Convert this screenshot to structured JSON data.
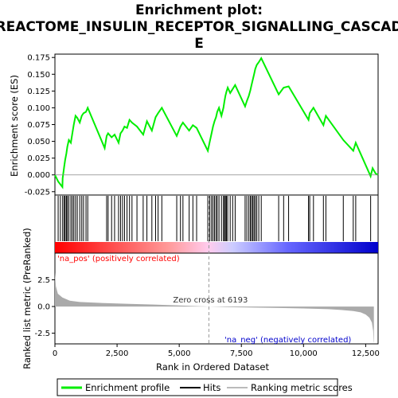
{
  "chart_data": {
    "type": "line",
    "title_lines": [
      "Enrichment plot:",
      "REACTOME_INSULIN_RECEPTOR_SIGNALLING_CASCAD",
      "E"
    ],
    "xlabel": "Rank in Ordered Dataset",
    "ylabel_top": "Enrichment score (ES)",
    "ylabel_bottom": "Ranked list metric (PreRanked)",
    "xlim": [
      0,
      13000
    ],
    "x_ticks": [
      0,
      2500,
      5000,
      7500,
      10000,
      12500
    ],
    "x_tick_labels": [
      "0",
      "2,500",
      "5,000",
      "7,500",
      "10,000",
      "12,500"
    ],
    "es_ylim": [
      -0.03,
      0.18
    ],
    "es_ticks": [
      -0.025,
      0.0,
      0.025,
      0.05,
      0.075,
      0.1,
      0.125,
      0.15,
      0.175
    ],
    "es_tick_labels": [
      "-0.025",
      "0.000",
      "0.025",
      "0.050",
      "0.075",
      "0.100",
      "0.125",
      "0.150",
      "0.175"
    ],
    "metric_ylim": [
      -3.5,
      5.0
    ],
    "metric_ticks": [
      -2.5,
      0.0,
      2.5
    ],
    "metric_tick_labels": [
      "-2.5",
      "0.0",
      "2.5"
    ],
    "zero_cross": 6193,
    "zero_cross_label": "Zero cross at 6193",
    "pos_label": "'na_pos' (positively correlated)",
    "neg_label": "'na_neg' (negatively correlated)",
    "hits": [
      130,
      220,
      310,
      370,
      410,
      460,
      500,
      560,
      640,
      700,
      760,
      830,
      900,
      1000,
      1080,
      1150,
      1250,
      1320,
      2080,
      2140,
      2280,
      2400,
      2560,
      2640,
      2720,
      2800,
      2900,
      3000,
      3100,
      3300,
      3550,
      3700,
      3900,
      4050,
      4150,
      4300,
      4900,
      5050,
      5150,
      5400,
      5550,
      5700,
      6150,
      6230,
      6300,
      6360,
      6420,
      6480,
      6530,
      6600,
      6700,
      6780,
      6820,
      6860,
      6900,
      6950,
      7050,
      7150,
      7250,
      7650,
      7720,
      7800,
      7860,
      7910,
      7960,
      8010,
      8060,
      8120,
      8200,
      8300,
      9000,
      9200,
      9400,
      10200,
      10250,
      10400,
      10800,
      10900,
      11600,
      12000,
      12100,
      12700
    ],
    "es_profile": [
      [
        0,
        0.0
      ],
      [
        130,
        -0.01
      ],
      [
        300,
        -0.018
      ],
      [
        310,
        -0.005
      ],
      [
        370,
        0.012
      ],
      [
        410,
        0.022
      ],
      [
        460,
        0.032
      ],
      [
        500,
        0.042
      ],
      [
        560,
        0.052
      ],
      [
        640,
        0.048
      ],
      [
        700,
        0.062
      ],
      [
        760,
        0.075
      ],
      [
        830,
        0.088
      ],
      [
        900,
        0.085
      ],
      [
        1000,
        0.078
      ],
      [
        1080,
        0.088
      ],
      [
        1150,
        0.092
      ],
      [
        1250,
        0.094
      ],
      [
        1320,
        0.1
      ],
      [
        2000,
        0.04
      ],
      [
        2080,
        0.058
      ],
      [
        2140,
        0.062
      ],
      [
        2280,
        0.056
      ],
      [
        2400,
        0.06
      ],
      [
        2560,
        0.048
      ],
      [
        2640,
        0.062
      ],
      [
        2720,
        0.066
      ],
      [
        2800,
        0.072
      ],
      [
        2900,
        0.07
      ],
      [
        3000,
        0.082
      ],
      [
        3100,
        0.078
      ],
      [
        3300,
        0.072
      ],
      [
        3550,
        0.06
      ],
      [
        3700,
        0.08
      ],
      [
        3900,
        0.066
      ],
      [
        4050,
        0.086
      ],
      [
        4150,
        0.092
      ],
      [
        4300,
        0.1
      ],
      [
        4900,
        0.058
      ],
      [
        5050,
        0.072
      ],
      [
        5150,
        0.078
      ],
      [
        5400,
        0.066
      ],
      [
        5550,
        0.074
      ],
      [
        5700,
        0.07
      ],
      [
        6150,
        0.036
      ],
      [
        6230,
        0.05
      ],
      [
        6300,
        0.062
      ],
      [
        6360,
        0.072
      ],
      [
        6420,
        0.08
      ],
      [
        6480,
        0.086
      ],
      [
        6530,
        0.094
      ],
      [
        6600,
        0.1
      ],
      [
        6700,
        0.088
      ],
      [
        6780,
        0.1
      ],
      [
        6820,
        0.11
      ],
      [
        6860,
        0.118
      ],
      [
        6900,
        0.124
      ],
      [
        6950,
        0.13
      ],
      [
        7050,
        0.122
      ],
      [
        7150,
        0.128
      ],
      [
        7250,
        0.134
      ],
      [
        7650,
        0.102
      ],
      [
        7720,
        0.11
      ],
      [
        7800,
        0.118
      ],
      [
        7860,
        0.126
      ],
      [
        7910,
        0.134
      ],
      [
        7960,
        0.142
      ],
      [
        8010,
        0.15
      ],
      [
        8060,
        0.158
      ],
      [
        8120,
        0.164
      ],
      [
        8200,
        0.168
      ],
      [
        8300,
        0.174
      ],
      [
        9000,
        0.12
      ],
      [
        9200,
        0.13
      ],
      [
        9400,
        0.132
      ],
      [
        10200,
        0.082
      ],
      [
        10250,
        0.092
      ],
      [
        10400,
        0.1
      ],
      [
        10800,
        0.074
      ],
      [
        10900,
        0.088
      ],
      [
        11600,
        0.052
      ],
      [
        12000,
        0.036
      ],
      [
        12100,
        0.048
      ],
      [
        12700,
        -0.002
      ],
      [
        12780,
        0.01
      ],
      [
        12900,
        0.002
      ],
      [
        13000,
        0.0
      ]
    ],
    "metric_profile": [
      [
        0,
        3.2
      ],
      [
        40,
        1.9
      ],
      [
        120,
        1.2
      ],
      [
        300,
        0.85
      ],
      [
        600,
        0.55
      ],
      [
        1000,
        0.42
      ],
      [
        2000,
        0.32
      ],
      [
        3000,
        0.25
      ],
      [
        4000,
        0.18
      ],
      [
        5000,
        0.1
      ],
      [
        6193,
        0.0
      ],
      [
        7000,
        -0.06
      ],
      [
        8000,
        -0.1
      ],
      [
        9000,
        -0.14
      ],
      [
        10000,
        -0.18
      ],
      [
        11000,
        -0.25
      ],
      [
        11500,
        -0.32
      ],
      [
        12000,
        -0.42
      ],
      [
        12300,
        -0.55
      ],
      [
        12500,
        -0.75
      ],
      [
        12650,
        -1.05
      ],
      [
        12750,
        -1.5
      ],
      [
        12800,
        -2.3
      ],
      [
        12820,
        -3.3
      ],
      [
        12830,
        -3.4
      ]
    ],
    "legend": [
      {
        "label": "Enrichment profile",
        "color": "#00ee00"
      },
      {
        "label": "Hits",
        "color": "#000000"
      },
      {
        "label": "Ranking metric scores",
        "color": "#bbbbbb"
      }
    ],
    "colors": {
      "es_line": "#00ee00",
      "hit_line": "#000000",
      "metric_fill": "#aaaaaa",
      "pos_text": "#ff0000",
      "neg_text": "#0000cc",
      "zero_cross_line": "#999999",
      "gradient": [
        "#ff0000",
        "#ff9999",
        "#ffccee",
        "#ccccff",
        "#6666ff",
        "#0000cc"
      ]
    }
  }
}
